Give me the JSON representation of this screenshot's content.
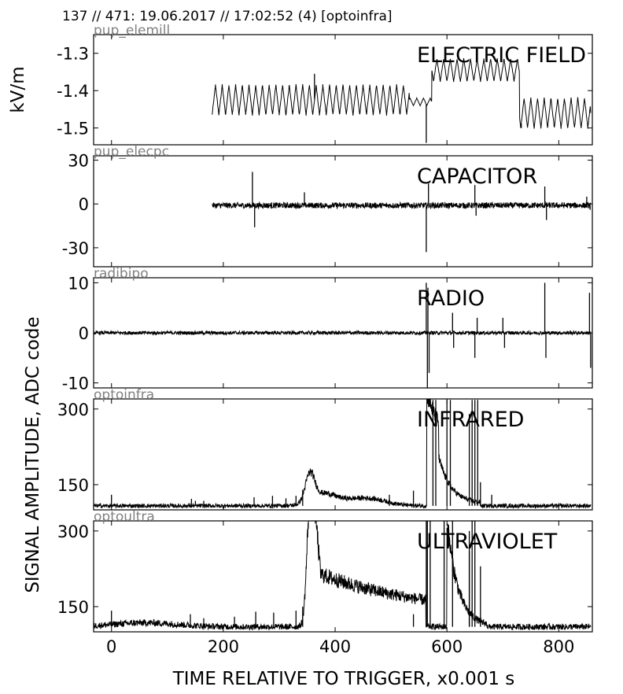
{
  "header": "137 // 471:   19.06.2017 // 17:02:52 (4)  [optoinfra]",
  "chart_data": {
    "type": "line",
    "x_axis": {
      "label": "TIME RELATIVE TO TRIGGER,   x0.001 s",
      "range": [
        -32,
        860
      ],
      "ticks": [
        0,
        200,
        400,
        600,
        800
      ],
      "tick_labels": [
        "0",
        "200",
        "400",
        "600",
        "800"
      ]
    },
    "shared_ylabel": "SIGNAL AMPLITUDE,  ADC code",
    "grid": false,
    "panels": [
      {
        "channel": "pup_elemill",
        "label": "ELECTRIC FIELD",
        "ylabel": "kV/m",
        "ylim": [
          -1.545,
          -1.25
        ],
        "yticks": [
          -1.3,
          -1.4,
          -1.5
        ],
        "ytick_labels": [
          "-1.3",
          "-1.4",
          "-1.5"
        ],
        "data_start": 180,
        "data_end": 857,
        "segments": [
          {
            "x0": 180,
            "x1": 533,
            "center": -1.425,
            "amp": 0.04,
            "period": 12
          },
          {
            "x0": 533,
            "x1": 573,
            "center": -1.43,
            "amp": 0.01,
            "period": 12
          },
          {
            "x0": 573,
            "x1": 730,
            "center": -1.345,
            "amp": 0.03,
            "period": 12
          },
          {
            "x0": 730,
            "x1": 857,
            "center": -1.46,
            "amp": 0.04,
            "period": 12
          }
        ],
        "spikes": [
          [
            363,
            -1.355
          ],
          [
            563,
            -1.54
          ],
          [
            733,
            -1.5
          ]
        ]
      },
      {
        "channel": "pup_elecpc",
        "label": "CAPACITOR",
        "ylim": [
          -43,
          33
        ],
        "yticks": [
          30,
          0,
          -30
        ],
        "ytick_labels": [
          "30",
          "0",
          "-30"
        ],
        "data_start": 180,
        "data_end": 857,
        "baseline": -1,
        "noise": 2,
        "spikes": [
          [
            252,
            22
          ],
          [
            256,
            -16
          ],
          [
            345,
            8
          ],
          [
            563,
            -33
          ],
          [
            567,
            14
          ],
          [
            650,
            13
          ],
          [
            652,
            -8
          ],
          [
            775,
            12
          ],
          [
            778,
            -11
          ],
          [
            850,
            5
          ],
          [
            856,
            -4
          ]
        ]
      },
      {
        "channel": "radibipo",
        "label": "RADIO",
        "ylim": [
          -11,
          11
        ],
        "yticks": [
          10,
          0,
          -10
        ],
        "ytick_labels": [
          "10",
          "0",
          "-10"
        ],
        "data_start": -32,
        "data_end": 857,
        "baseline": 0,
        "noise": 0.35,
        "spikes": [
          [
            563,
            10
          ],
          [
            565,
            -11
          ],
          [
            566,
            9
          ],
          [
            568,
            -8
          ],
          [
            610,
            4
          ],
          [
            612,
            -3
          ],
          [
            650,
            -5
          ],
          [
            654,
            3
          ],
          [
            700,
            3
          ],
          [
            703,
            -3
          ],
          [
            775,
            10
          ],
          [
            777,
            -5
          ],
          [
            855,
            8
          ],
          [
            857,
            -7
          ]
        ]
      },
      {
        "channel": "optoinfra",
        "label": "INFRARED",
        "ylim": [
          100,
          320
        ],
        "yticks": [
          300,
          150
        ],
        "ytick_labels": [
          "300",
          "150"
        ],
        "data_start": -32,
        "data_end": 857,
        "baseline": 108,
        "noise": 4,
        "spikes": [
          [
            0,
            130
          ],
          [
            143,
            122
          ],
          [
            150,
            118
          ],
          [
            165,
            118
          ],
          [
            255,
            125
          ],
          [
            288,
            128
          ],
          [
            312,
            123
          ],
          [
            330,
            128
          ],
          [
            342,
            140
          ],
          [
            497,
            130
          ],
          [
            540,
            138
          ],
          [
            660,
            155
          ],
          [
            680,
            130
          ],
          [
            705,
            112
          ]
        ],
        "bumps": [
          [
            355,
            165,
            12
          ],
          [
            380,
            125,
            25
          ],
          [
            420,
            120,
            60
          ],
          [
            470,
            116,
            40
          ]
        ],
        "decays": [
          [
            564,
            330,
            585,
            205,
            35
          ],
          [
            585,
            205,
            660,
            112,
            22
          ]
        ],
        "tall": [
          [
            575,
            318
          ],
          [
            580,
            318
          ],
          [
            600,
            318
          ],
          [
            606,
            318
          ],
          [
            640,
            290
          ],
          [
            645,
            318
          ],
          [
            650,
            318
          ],
          [
            655,
            318
          ]
        ]
      },
      {
        "channel": "optoultra",
        "label": "ULTRAVIOLET",
        "ylim": [
          100,
          320
        ],
        "yticks": [
          300,
          150
        ],
        "ytick_labels": [
          "300",
          "150"
        ],
        "data_start": -32,
        "data_end": 857,
        "baseline": 110,
        "noise": 6,
        "spikes": [
          [
            0,
            142
          ],
          [
            141,
            135
          ],
          [
            165,
            127
          ],
          [
            220,
            130
          ],
          [
            258,
            140
          ],
          [
            290,
            138
          ],
          [
            330,
            142
          ],
          [
            342,
            150
          ],
          [
            540,
            135
          ],
          [
            640,
            260
          ],
          [
            660,
            230
          ]
        ],
        "bumps": [
          [
            60,
            118,
            80
          ],
          [
            355,
            320,
            8
          ],
          [
            365,
            270,
            10
          ],
          [
            400,
            180,
            30
          ],
          [
            440,
            165,
            30
          ],
          [
            490,
            140,
            40
          ]
        ],
        "decays": [
          [
            372,
            215,
            562,
            130,
            200
          ],
          [
            600,
            320,
            672,
            110,
            20
          ]
        ],
        "tall": [
          [
            563,
            320
          ],
          [
            565,
            320
          ],
          [
            570,
            320
          ],
          [
            595,
            320
          ],
          [
            610,
            320
          ],
          [
            640,
            300
          ],
          [
            645,
            320
          ],
          [
            650,
            320
          ]
        ]
      }
    ]
  }
}
